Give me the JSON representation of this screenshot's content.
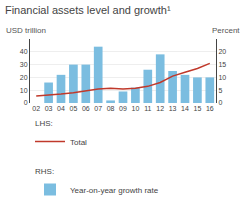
{
  "chart_data": {
    "type": "bar",
    "title": "Financial assets level and growth¹",
    "ylabel": "USD trillion",
    "y2label": "Percent",
    "categories": [
      "02",
      "03",
      "04",
      "05",
      "06",
      "07",
      "08",
      "09",
      "10",
      "11",
      "12",
      "13",
      "14",
      "15",
      "16"
    ],
    "series": [
      {
        "name": "Total",
        "type": "line",
        "axis": "y",
        "color": "#c0392b",
        "values": [
          5.5,
          6.0,
          7.0,
          8.0,
          9.5,
          11.0,
          11.5,
          11.0,
          11.5,
          13.0,
          16.0,
          21.0,
          24.0,
          27.0,
          31.0
        ]
      },
      {
        "name": "Year-on-year growth rate",
        "type": "bar",
        "axis": "y2",
        "color": "#7bbde0",
        "values": [
          0,
          8,
          11,
          15,
          15,
          22,
          1,
          4.5,
          6,
          13,
          19,
          12.5,
          11,
          10,
          10
        ]
      }
    ],
    "annotations": [
      "LHS:",
      "RHS:"
    ],
    "ylim": [
      0,
      50
    ],
    "yticks": [
      0,
      10,
      20,
      30,
      40
    ],
    "y2lim": [
      0,
      25
    ],
    "y2ticks": [
      0,
      5,
      10,
      15,
      20
    ],
    "grid": true,
    "legend": "bottom"
  }
}
